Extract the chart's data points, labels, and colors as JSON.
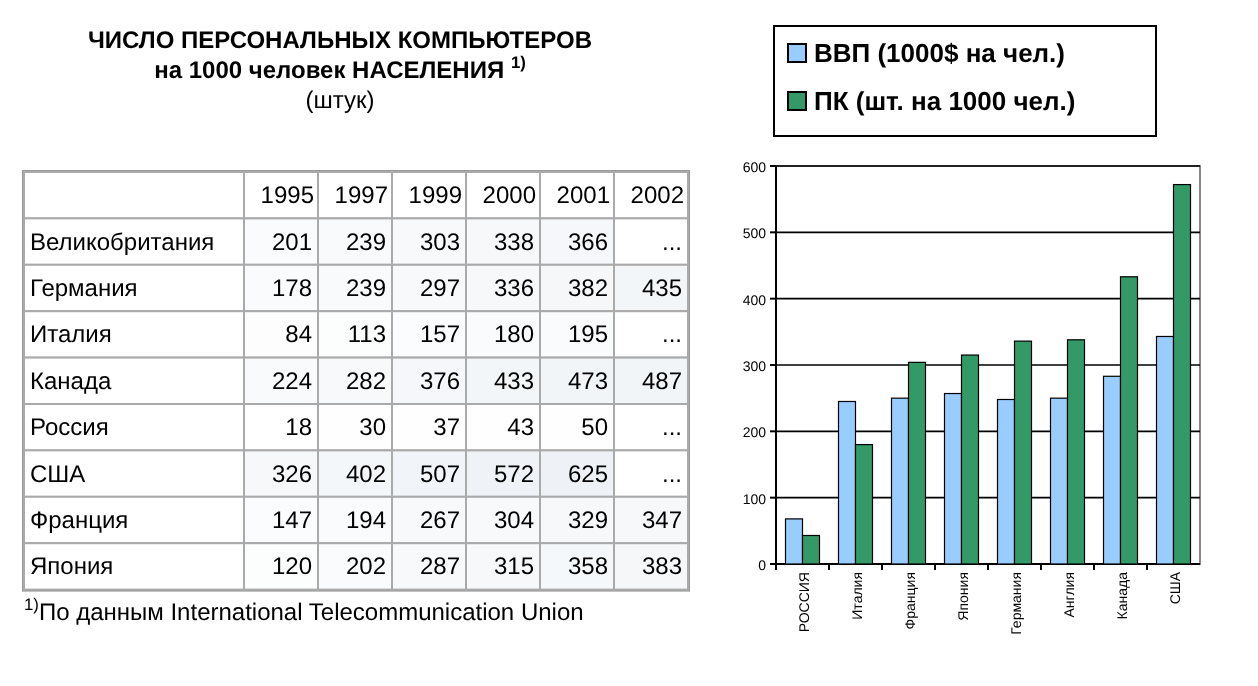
{
  "chart_data": [
    {
      "type": "heatmap",
      "title": "ЧИСЛО ПЕРСОНАЛЬНЫХ КОМПЬЮТЕРОВ\nна 1000 человек НАСЕЛЕНИЯ $^{1)}$",
      "subtitle": "(штук)",
      "categories": [
        "1995",
        "1997",
        "1999",
        "2000",
        "2001",
        "2002"
      ],
      "y_categories": [
        "Великобритания",
        "Германия",
        "Италия",
        "Канада",
        "Россия",
        "США",
        "Франция",
        "Япония"
      ],
      "cells": [
        [
          201,
          239,
          303,
          338,
          366,
          null
        ],
        [
          178,
          239,
          297,
          336,
          382,
          435
        ],
        [
          84,
          113,
          157,
          180,
          195,
          null
        ],
        [
          224,
          282,
          376,
          433,
          473,
          487
        ],
        [
          18,
          30,
          37,
          43,
          50,
          null
        ],
        [
          326,
          402,
          507,
          572,
          625,
          null
        ],
        [
          147,
          194,
          267,
          304,
          329,
          347
        ],
        [
          120,
          202,
          287,
          315,
          358,
          383
        ]
      ],
      "cell_labels": [
        [
          "201",
          "239",
          "303",
          "338",
          "366",
          "..."
        ],
        [
          "178",
          "239",
          "297",
          "336",
          "382",
          "435"
        ],
        [
          "84",
          "113",
          "157",
          "180",
          "195",
          "..."
        ],
        [
          "224",
          "282",
          "376",
          "433",
          "473",
          "487"
        ],
        [
          "18",
          "30",
          "37",
          "43",
          "50",
          "..."
        ],
        [
          "326",
          "402",
          "507",
          "572",
          "625",
          "..."
        ],
        [
          "147",
          "194",
          "267",
          "304",
          "329",
          "347"
        ],
        [
          "120",
          "202",
          "287",
          "315",
          "358",
          "383"
        ]
      ],
      "annotations": [
        "$^{1)}$По данным International Telecommunication Union"
      ]
    },
    {
      "type": "bar",
      "categories": [
        "РОССИЯ",
        "Италия",
        "Франция",
        "Япония",
        "Германия",
        "Англия",
        "Канада",
        "США"
      ],
      "series": [
        {
          "name": "ВВП (1000$ на чел.)",
          "color": "#99ccff",
          "values": [
            68,
            245,
            250,
            257,
            248,
            250,
            283,
            343
          ]
        },
        {
          "name": "ПК (шт. на 1000 чел.)",
          "color": "#339966",
          "values": [
            43,
            180,
            304,
            315,
            336,
            338,
            433,
            572
          ]
        }
      ],
      "ylim": [
        0,
        600
      ],
      "yticks": [
        0,
        100,
        200,
        300,
        400,
        500,
        600
      ],
      "grid": "y",
      "legend": "top"
    }
  ]
}
